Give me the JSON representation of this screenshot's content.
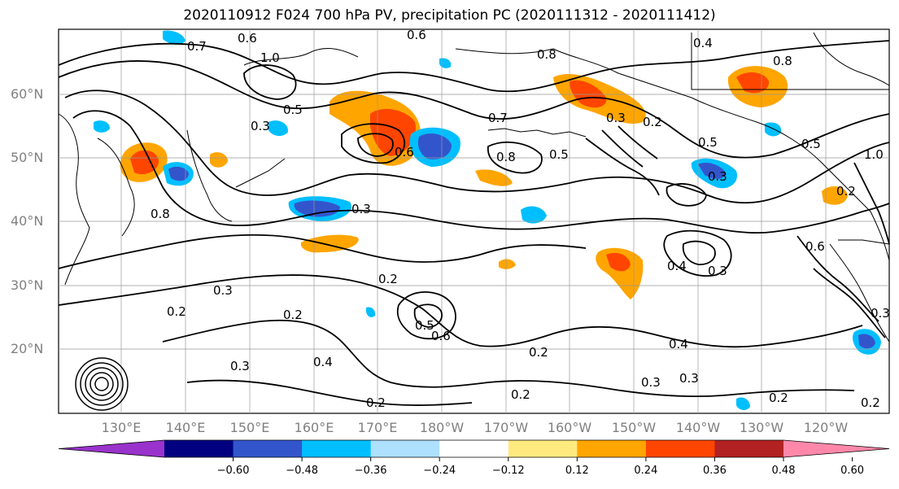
{
  "title": "2020110912 F024 700 hPa PV, precipitation PC (2020111312 - 2020111412)",
  "lat_labels": [
    "60°N",
    "50°N",
    "40°N",
    "30°N",
    "20°N"
  ],
  "lon_labels": [
    "130°E",
    "140°E",
    "150°E",
    "160°E",
    "170°E",
    "180°W",
    "170°W",
    "160°W",
    "150°W",
    "140°W",
    "130°W",
    "120°W"
  ],
  "contour_labels": [
    "0.7",
    "0.6",
    "1.0",
    "0.6",
    "0.8",
    "0.4",
    "0.8",
    "0.5",
    "0.3",
    "0.7",
    "0.5",
    "0.2",
    "0.3",
    "0.6",
    "0.8",
    "0.5",
    "0.3",
    "0.3",
    "0.8",
    "0.3",
    "0.2",
    "0.3",
    "0.4",
    "0.3",
    "0.2",
    "0.2",
    "0.3",
    "0.4",
    "0.5",
    "0.6",
    "0.3",
    "0.2",
    "0.2",
    "0.2",
    "0.2",
    "0.4",
    "0.3",
    "0.2",
    "0.2",
    "0.6",
    "0.5",
    "1.0"
  ],
  "colorbar": {
    "colors": [
      "#9933cc",
      "#000080",
      "#3355cc",
      "#00bfff",
      "#aee0ff",
      "#ffffff",
      "#ffea80",
      "#ffa500",
      "#ff4500",
      "#b22222",
      "#ff88aa"
    ],
    "ticks": [
      "−0.60",
      "−0.48",
      "−0.36",
      "−0.24",
      "−0.12",
      "0.12",
      "0.24",
      "0.36",
      "0.48",
      "0.60"
    ]
  },
  "legend_colors": {
    "warm_mid": "#ffa500",
    "warm_high": "#ff4500",
    "cool_mid": "#00bfff",
    "cool_high": "#3355cc"
  }
}
